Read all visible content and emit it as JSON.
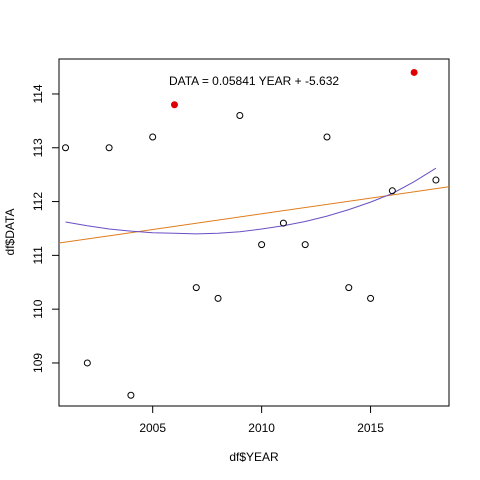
{
  "chart_data": {
    "type": "scatter",
    "title": "",
    "xlabel": "df$YEAR",
    "ylabel": "df$DATA",
    "xlim": [
      2000.7,
      2018.6
    ],
    "ylim": [
      108.2,
      114.65
    ],
    "x_ticks": [
      2005,
      2010,
      2015
    ],
    "y_ticks": [
      109,
      110,
      111,
      112,
      113,
      114
    ],
    "annotation": "DATA = 0.05841 YEAR + -5.632",
    "points": [
      {
        "x": 2001,
        "y": 113.0,
        "highlight": false
      },
      {
        "x": 2002,
        "y": 109.0,
        "highlight": false
      },
      {
        "x": 2003,
        "y": 113.0,
        "highlight": false
      },
      {
        "x": 2004,
        "y": 108.4,
        "highlight": false
      },
      {
        "x": 2005,
        "y": 113.2,
        "highlight": false
      },
      {
        "x": 2006,
        "y": 113.8,
        "highlight": true
      },
      {
        "x": 2007,
        "y": 110.4,
        "highlight": false
      },
      {
        "x": 2008,
        "y": 110.2,
        "highlight": false
      },
      {
        "x": 2009,
        "y": 113.6,
        "highlight": false
      },
      {
        "x": 2010,
        "y": 111.2,
        "highlight": false
      },
      {
        "x": 2011,
        "y": 111.6,
        "highlight": false
      },
      {
        "x": 2012,
        "y": 111.2,
        "highlight": false
      },
      {
        "x": 2013,
        "y": 113.2,
        "highlight": false
      },
      {
        "x": 2014,
        "y": 110.4,
        "highlight": false
      },
      {
        "x": 2015,
        "y": 110.2,
        "highlight": false
      },
      {
        "x": 2016,
        "y": 112.2,
        "highlight": false
      },
      {
        "x": 2017,
        "y": 114.4,
        "highlight": true
      },
      {
        "x": 2018,
        "y": 112.4,
        "highlight": false
      }
    ],
    "linear_fit": {
      "slope": 0.05841,
      "intercept": -5.632,
      "color": "#e07b1a"
    },
    "quadratic_fit": {
      "x": [
        2001,
        2002,
        2003,
        2004,
        2005,
        2006,
        2007,
        2008,
        2009,
        2010,
        2011,
        2012,
        2013,
        2014,
        2015,
        2016,
        2017,
        2018
      ],
      "y": [
        111.62,
        111.55,
        111.49,
        111.45,
        111.42,
        111.41,
        111.4,
        111.41,
        111.44,
        111.49,
        111.55,
        111.63,
        111.73,
        111.85,
        111.99,
        112.15,
        112.37,
        112.62
      ],
      "color": "#6a4fc4"
    },
    "colors": {
      "point_outline": "#000000",
      "point_highlight": "#e00000"
    },
    "grid": false,
    "legend": "none"
  }
}
